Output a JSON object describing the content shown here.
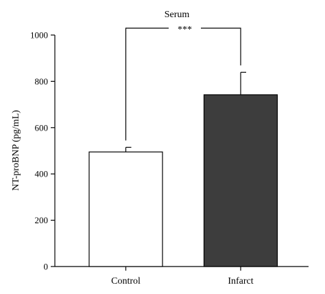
{
  "chart_data": {
    "type": "bar",
    "title": "Serum",
    "ylabel": "NT-proBNP (pg/mL)",
    "xlabel": "",
    "ylim": [
      0,
      1000
    ],
    "yticks": [
      0,
      200,
      400,
      600,
      800,
      1000
    ],
    "yticks_labels": [
      "0",
      "200",
      "400",
      "600",
      "800",
      "1000"
    ],
    "categories": [
      "Control",
      "Infarct"
    ],
    "values": [
      495,
      742
    ],
    "errors": [
      20,
      97
    ],
    "bar_colors": [
      "#ffffff",
      "#3d3d3d"
    ],
    "significance": {
      "label": "***",
      "between": [
        "Control",
        "Infarct"
      ]
    },
    "grid": false,
    "legend": "none"
  }
}
